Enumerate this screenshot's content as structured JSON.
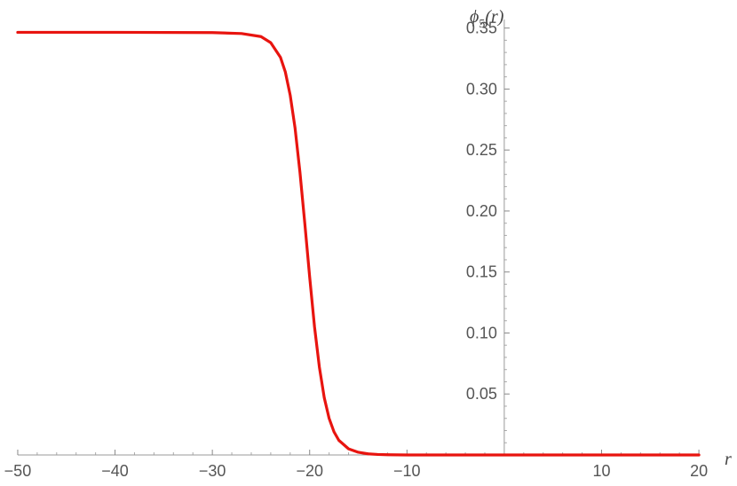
{
  "chart_data": {
    "type": "line",
    "xlabel": "r",
    "ylabel": "ϕ5(r)",
    "xlim": [
      -51,
      22
    ],
    "ylim": [
      0,
      0.357
    ],
    "xticks": [
      -50,
      -40,
      -30,
      -20,
      -10,
      10,
      20
    ],
    "xtick_labels": [
      "−50",
      "−40",
      "−30",
      "−20",
      "−10",
      "10",
      "20"
    ],
    "yticks": [
      0.05,
      0.1,
      0.15,
      0.2,
      0.25,
      0.3,
      0.35
    ],
    "ytick_labels": [
      "0.05",
      "0.10",
      "0.15",
      "0.20",
      "0.25",
      "0.30",
      "0.35"
    ],
    "grid": false,
    "series": [
      {
        "color": "#e8140f",
        "x": [
          -50,
          -40,
          -30,
          -27,
          -25,
          -24,
          -23,
          -22.5,
          -22,
          -21.5,
          -21,
          -20.5,
          -20,
          -19.5,
          -19,
          -18.5,
          -18,
          -17.5,
          -17,
          -16,
          -15,
          -14,
          -13,
          -12,
          -10,
          0,
          10,
          20
        ],
        "y": [
          0.3465,
          0.3465,
          0.3463,
          0.3455,
          0.343,
          0.338,
          0.326,
          0.314,
          0.295,
          0.268,
          0.232,
          0.19,
          0.146,
          0.105,
          0.072,
          0.047,
          0.03,
          0.019,
          0.012,
          0.005,
          0.0022,
          0.0009,
          0.0004,
          0.0002,
          0.0,
          0.0,
          0.0,
          0.0
        ]
      }
    ]
  }
}
